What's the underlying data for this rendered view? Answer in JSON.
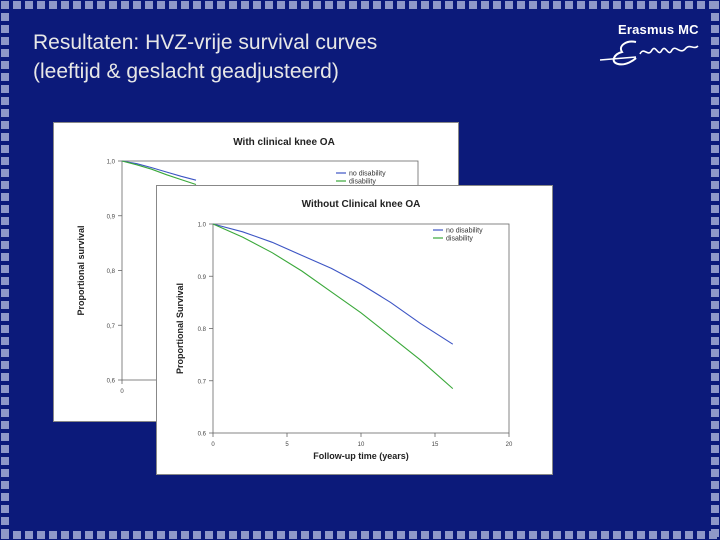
{
  "slide": {
    "title_line1": "Resultaten: HVZ-vrije survival curves",
    "title_line2": "(leeftijd & geslacht geadjusteerd)",
    "logo_text": "Erasmus MC",
    "logo_script": "Ezafung",
    "colors": {
      "background": "#0c1a7a",
      "title": "#e7e7e7",
      "no_disability": "#3d55c4",
      "disability": "#3aa83a"
    }
  },
  "chart_data": [
    {
      "type": "line",
      "title": "With clinical knee OA",
      "xlabel": "",
      "ylabel": "Proportional survival",
      "yticks": [
        "1,0",
        "0,9",
        "0,8",
        "0,7",
        "0,6"
      ],
      "xticks": [
        "0"
      ],
      "ylim": [
        0.6,
        1.0
      ],
      "xlim": [
        0,
        20
      ],
      "legend_position": "top-right",
      "series": [
        {
          "name": "no disability",
          "x": [
            0,
            1,
            2,
            3,
            4,
            5
          ],
          "y": [
            1.0,
            0.995,
            0.988,
            0.98,
            0.972,
            0.965
          ]
        },
        {
          "name": "disability",
          "x": [
            0,
            1,
            2,
            3,
            4,
            5
          ],
          "y": [
            1.0,
            0.993,
            0.985,
            0.975,
            0.966,
            0.957
          ]
        }
      ]
    },
    {
      "type": "line",
      "title": "Without Clinical knee OA",
      "xlabel": "Follow-up time (years)",
      "ylabel": "Proportional Survival",
      "yticks": [
        "1.0",
        "0.9",
        "0.8",
        "0.7",
        "0.6"
      ],
      "xticks": [
        "0",
        "5",
        "10",
        "15",
        "20"
      ],
      "ylim": [
        0.6,
        1.0
      ],
      "xlim": [
        0,
        20
      ],
      "legend_position": "top-right",
      "series": [
        {
          "name": "no disability",
          "x": [
            0,
            2,
            4,
            6,
            8,
            10,
            12,
            14,
            16.2
          ],
          "y": [
            1.0,
            0.985,
            0.965,
            0.94,
            0.915,
            0.885,
            0.85,
            0.81,
            0.77
          ]
        },
        {
          "name": "disability",
          "x": [
            0,
            2,
            4,
            6,
            8,
            10,
            12,
            14,
            16.2
          ],
          "y": [
            1.0,
            0.975,
            0.945,
            0.91,
            0.87,
            0.83,
            0.785,
            0.74,
            0.685
          ]
        }
      ]
    }
  ]
}
